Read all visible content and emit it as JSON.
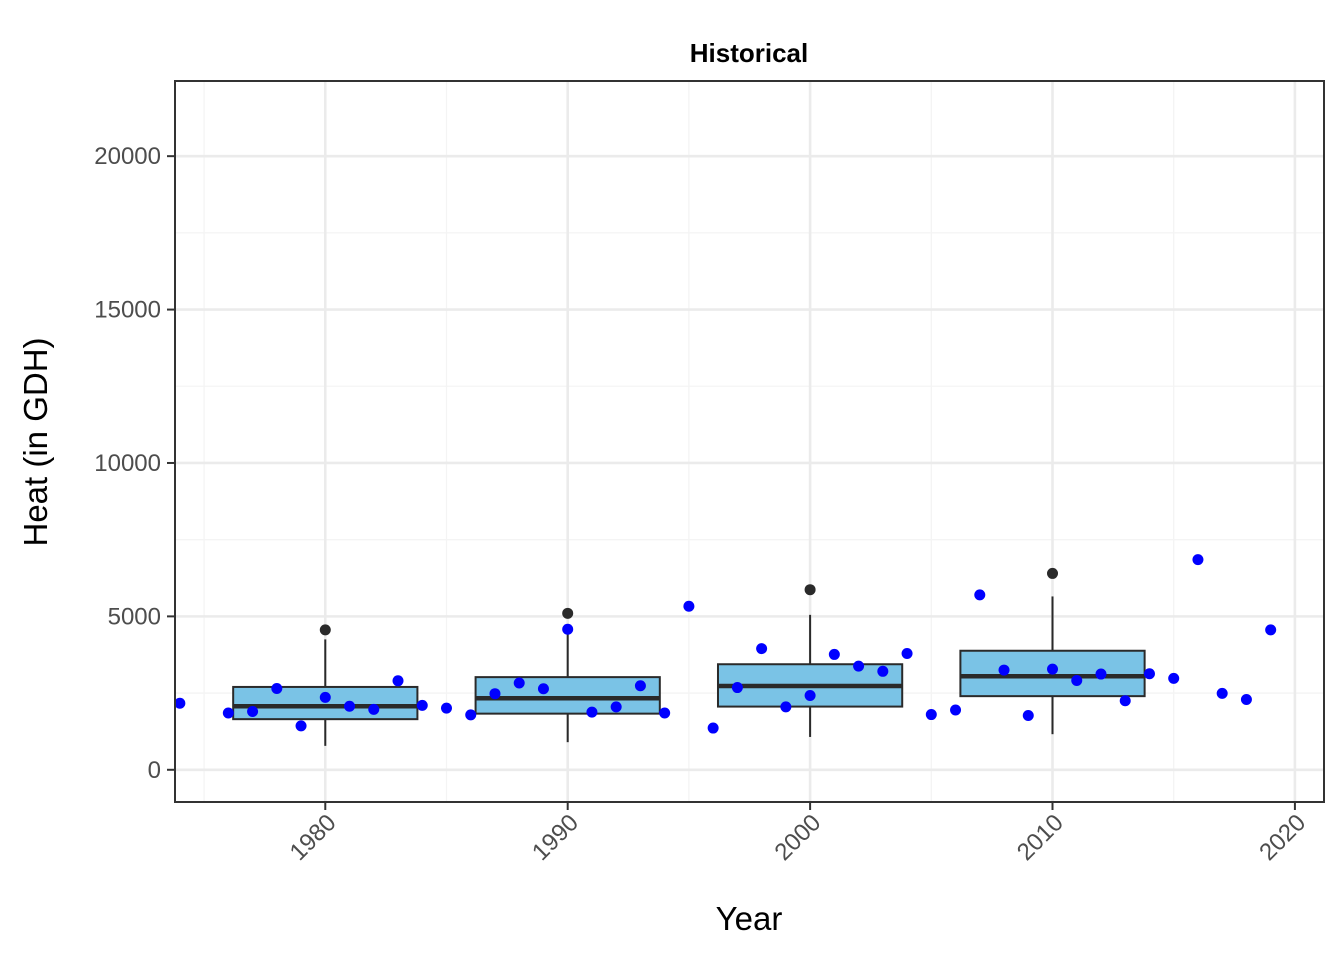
{
  "chart_data": {
    "type": "boxplot_scatter",
    "title": "Historical",
    "xlabel": "Year",
    "ylabel": "Heat (in GDH)",
    "xlim": [
      1973.8,
      2021.2
    ],
    "ylim": [
      -1050,
      22450
    ],
    "x_ticks": [
      1980,
      1990,
      2000,
      2010,
      2020
    ],
    "x_tick_labels": [
      "1980",
      "1990",
      "2000",
      "2010",
      "2020"
    ],
    "y_ticks": [
      0,
      5000,
      10000,
      15000,
      20000
    ],
    "y_tick_labels": [
      "0",
      "5000",
      "10000",
      "15000",
      "20000"
    ],
    "grid": true,
    "colors": {
      "box_fill": "#7ac3e6",
      "box_line": "#2a2a2a",
      "points": "#0000ff",
      "outliers": "#2a2a2a",
      "grid_major": "#ebebeb",
      "grid_minor": "#f4f4f4",
      "panel_border": "#333333"
    },
    "boxes": [
      {
        "x": 1980,
        "xmin": 1976.2,
        "xmax": 1983.8,
        "whisker_low": 780,
        "q1": 1650,
        "median": 2070,
        "q3": 2700,
        "whisker_high": 4250,
        "outliers": [
          4560
        ]
      },
      {
        "x": 1990,
        "xmin": 1986.2,
        "xmax": 1993.8,
        "whisker_low": 900,
        "q1": 1830,
        "median": 2330,
        "q3": 3020,
        "whisker_high": 4450,
        "outliers": [
          5100
        ]
      },
      {
        "x": 2000,
        "xmin": 1996.2,
        "xmax": 2003.8,
        "whisker_low": 1070,
        "q1": 2060,
        "median": 2730,
        "q3": 3440,
        "whisker_high": 5050,
        "outliers": [
          5870
        ]
      },
      {
        "x": 2010,
        "xmin": 2006.2,
        "xmax": 2013.8,
        "whisker_low": 1160,
        "q1": 2400,
        "median": 3050,
        "q3": 3880,
        "whisker_high": 5650,
        "outliers": [
          6400
        ]
      }
    ],
    "points": [
      {
        "x": 1974,
        "y": 2170
      },
      {
        "x": 1976,
        "y": 1850
      },
      {
        "x": 1977,
        "y": 1900
      },
      {
        "x": 1978,
        "y": 2650
      },
      {
        "x": 1979,
        "y": 1430
      },
      {
        "x": 1980,
        "y": 2360
      },
      {
        "x": 1981,
        "y": 2070
      },
      {
        "x": 1982,
        "y": 1970
      },
      {
        "x": 1983,
        "y": 2900
      },
      {
        "x": 1984,
        "y": 2100
      },
      {
        "x": 1985,
        "y": 2010
      },
      {
        "x": 1986,
        "y": 1790
      },
      {
        "x": 1987,
        "y": 2480
      },
      {
        "x": 1988,
        "y": 2830
      },
      {
        "x": 1989,
        "y": 2640
      },
      {
        "x": 1990,
        "y": 4580
      },
      {
        "x": 1991,
        "y": 1880
      },
      {
        "x": 1992,
        "y": 2050
      },
      {
        "x": 1993,
        "y": 2740
      },
      {
        "x": 1994,
        "y": 1850
      },
      {
        "x": 1995,
        "y": 5330
      },
      {
        "x": 1996,
        "y": 1360
      },
      {
        "x": 1997,
        "y": 2680
      },
      {
        "x": 1998,
        "y": 3950
      },
      {
        "x": 1999,
        "y": 2050
      },
      {
        "x": 2000,
        "y": 2420
      },
      {
        "x": 2001,
        "y": 3760
      },
      {
        "x": 2002,
        "y": 3380
      },
      {
        "x": 2003,
        "y": 3210
      },
      {
        "x": 2004,
        "y": 3790
      },
      {
        "x": 2005,
        "y": 1800
      },
      {
        "x": 2006,
        "y": 1950
      },
      {
        "x": 2007,
        "y": 5700
      },
      {
        "x": 2008,
        "y": 3250
      },
      {
        "x": 2009,
        "y": 1770
      },
      {
        "x": 2010,
        "y": 3280
      },
      {
        "x": 2011,
        "y": 2910
      },
      {
        "x": 2012,
        "y": 3120
      },
      {
        "x": 2013,
        "y": 2250
      },
      {
        "x": 2014,
        "y": 3130
      },
      {
        "x": 2015,
        "y": 2980
      },
      {
        "x": 2016,
        "y": 6850
      },
      {
        "x": 2017,
        "y": 2490
      },
      {
        "x": 2018,
        "y": 2290
      },
      {
        "x": 2019,
        "y": 4560
      }
    ]
  }
}
